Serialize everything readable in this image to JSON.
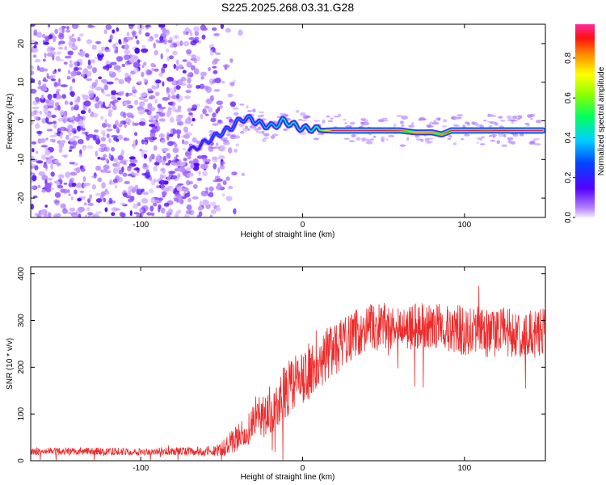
{
  "title": "S225.2025.268.03.31.G28",
  "chart_data": [
    {
      "type": "heatmap",
      "xlabel": "Height of straight line (km)",
      "ylabel": "Frequency (Hz)",
      "xlim": [
        -168,
        150
      ],
      "ylim": [
        -25,
        25
      ],
      "xticks": [
        -100,
        0,
        100
      ],
      "yticks": [
        -20,
        -10,
        0,
        10,
        20
      ],
      "colorbar": {
        "label": "Normalized spectral amplitude",
        "range": [
          0,
          0.97
        ],
        "ticks": [
          0.0,
          0.2,
          0.4,
          0.6,
          0.8
        ]
      },
      "ridge": {
        "x": [
          -68,
          -60,
          -52,
          -45,
          -38,
          -32,
          -25,
          -18,
          -12,
          -6,
          0,
          6,
          12,
          20,
          40,
          60,
          70,
          80,
          86,
          92,
          100,
          115,
          130,
          148
        ],
        "frequency": [
          -7.5,
          -5.5,
          -3.5,
          -2,
          0.5,
          0.5,
          -1,
          -1.5,
          0,
          -1,
          -2,
          -2,
          -2.5,
          -2.5,
          -2.5,
          -2.5,
          -3,
          -3,
          -3.5,
          -2.5,
          -2.5,
          -2.5,
          -2.5,
          -2.5
        ],
        "amplitude": [
          0.25,
          0.3,
          0.35,
          0.35,
          0.35,
          0.4,
          0.4,
          0.45,
          0.5,
          0.5,
          0.45,
          0.5,
          0.6,
          0.95,
          0.95,
          0.9,
          0.8,
          0.85,
          0.85,
          0.95,
          0.95,
          0.9,
          0.95,
          0.95
        ]
      },
      "noise_region_x": [
        -168,
        -55
      ]
    },
    {
      "type": "line",
      "xlabel": "Height of straight line (km)",
      "ylabel": "SNR (10 * v/v)",
      "xlim": [
        -168,
        150
      ],
      "ylim": [
        0,
        415
      ],
      "xticks": [
        -100,
        0,
        100
      ],
      "yticks": [
        0,
        100,
        200,
        300,
        400
      ],
      "color": "#ee2a2a",
      "series_envelope": {
        "x": [
          -168,
          -140,
          -110,
          -80,
          -60,
          -50,
          -40,
          -30,
          -20,
          -10,
          0,
          10,
          20,
          30,
          40,
          60,
          80,
          100,
          120,
          150
        ],
        "mean": [
          20,
          20,
          20,
          20,
          20,
          25,
          50,
          80,
          110,
          150,
          180,
          210,
          240,
          270,
          285,
          285,
          290,
          280,
          275,
          270
        ],
        "spread": [
          8,
          8,
          8,
          8,
          10,
          15,
          30,
          40,
          55,
          60,
          60,
          60,
          55,
          55,
          50,
          50,
          50,
          55,
          55,
          55
        ]
      }
    }
  ]
}
